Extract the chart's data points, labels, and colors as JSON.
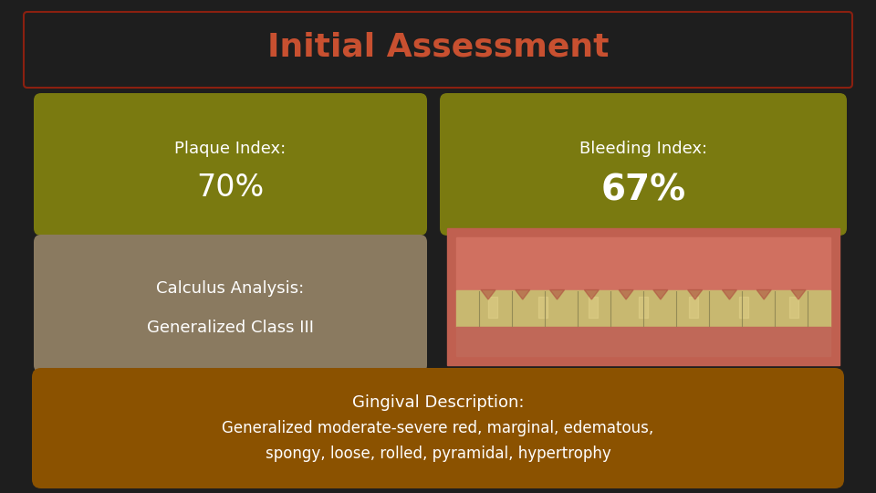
{
  "title": "Initial Assessment",
  "title_color": "#C85030",
  "background_color": "#1e1e1e",
  "title_border_color": "#8B2010",
  "box_color_olive": "#7a7a10",
  "box_color_olive_edge": "#a0a030",
  "box_color_tan": "#8a7a60",
  "box_color_tan_edge": "#b0a080",
  "box_color_brown": "#8B5200",
  "box_color_brown_edge": "#b07030",
  "text_color": "#FFFFFF",
  "font_size_title": 26,
  "font_size_label": 13,
  "font_size_value": 24,
  "font_size_bottom_title": 13,
  "font_size_bottom_body": 12,
  "plaque_label": "Plaque Index:",
  "plaque_value": "70%",
  "bleeding_label": "Bleeding Index:",
  "bleeding_value": "67%",
  "calculus_line1": "Calculus Analysis:",
  "calculus_line2": "Generalized Class III",
  "gingival_title": "Gingival Description:",
  "gingival_line1": "Generalized moderate-severe red, marginal, edematous,",
  "gingival_line2": "spongy, loose, rolled, pyramidal, hypertrophy"
}
